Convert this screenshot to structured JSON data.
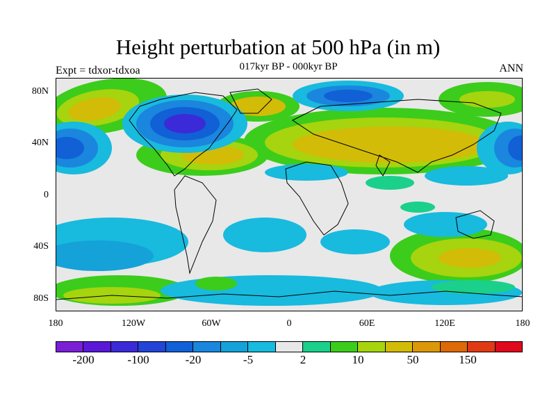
{
  "title": "Height perturbation at 500 hPa (in m)",
  "subtitle": "017kyr BP - 000kyr BP",
  "left_label": "Expt = tdxor-tdxoa",
  "right_label": "ANN",
  "lat_labels": [
    "80N",
    "40N",
    "0",
    "40S",
    "80S"
  ],
  "lon_labels": [
    "180",
    "120W",
    "60W",
    "0",
    "60E",
    "120E",
    "180"
  ],
  "colorbar": {
    "colors": [
      "#7a1fd6",
      "#5a18d8",
      "#3b2ad8",
      "#2344d6",
      "#1160d6",
      "#1a86de",
      "#14a2d8",
      "#18bade",
      "#e8e8e8",
      "#1bd08a",
      "#3ccc1c",
      "#a6d40e",
      "#d2bc08",
      "#dc9808",
      "#dc6a06",
      "#e03a14",
      "#e0081c"
    ],
    "labels": [
      "-200",
      "-100",
      "-20",
      "-5",
      "2",
      "10",
      "50",
      "150"
    ]
  },
  "field_palette": {
    "neutral": "#e8e8e8",
    "green_light": "#1bd08a",
    "green": "#3ccc1c",
    "yellow_green": "#a6d40e",
    "yellow": "#d2bc08",
    "orange": "#dc9808",
    "cyan": "#18bade",
    "blue_light": "#14a2d8",
    "blue": "#1a86de",
    "blue_mid": "#1160d6",
    "blue_dark": "#2344d6",
    "purple": "#3b2ad8"
  }
}
